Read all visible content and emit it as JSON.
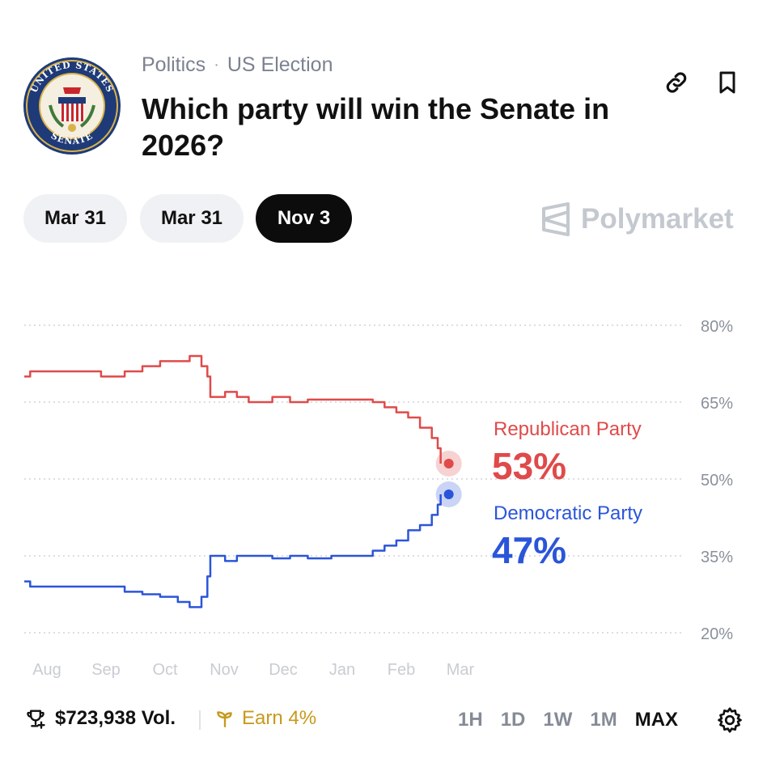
{
  "header": {
    "breadcrumb": {
      "category": "Politics",
      "separator": "·",
      "subcategory": "US Election"
    },
    "title": "Which party will win the Senate in 2026?",
    "icons": {
      "link": "link-icon",
      "bookmark": "bookmark-icon"
    },
    "logo": {
      "name": "us-senate-seal",
      "text": "UNITED STATES SENATE"
    }
  },
  "date_tabs": [
    {
      "label": "Mar 31",
      "active": false
    },
    {
      "label": "Mar 31",
      "active": false
    },
    {
      "label": "Nov 3",
      "active": true
    }
  ],
  "brand": {
    "name": "Polymarket",
    "icon": "polymarket-logo-icon"
  },
  "chart_data": {
    "type": "line",
    "y_ticks": [
      "80%",
      "65%",
      "50%",
      "35%",
      "20%"
    ],
    "y_tick_values": [
      80,
      65,
      50,
      35,
      20
    ],
    "ylim": [
      20,
      80
    ],
    "x_tick_labels": [
      "Aug",
      "Sep",
      "Oct",
      "Nov",
      "Dec",
      "Jan",
      "Feb",
      "Mar"
    ],
    "grid": true,
    "series": [
      {
        "name": "Republican Party",
        "value_label": "53%",
        "color": "#e04a4a",
        "points": [
          [
            0.0,
            70
          ],
          [
            0.1,
            71
          ],
          [
            0.5,
            71
          ],
          [
            0.9,
            71
          ],
          [
            1.3,
            70
          ],
          [
            1.7,
            71
          ],
          [
            2.0,
            72
          ],
          [
            2.3,
            73
          ],
          [
            2.6,
            73
          ],
          [
            2.8,
            74
          ],
          [
            3.0,
            72
          ],
          [
            3.1,
            70
          ],
          [
            3.15,
            66
          ],
          [
            3.4,
            67
          ],
          [
            3.6,
            66
          ],
          [
            3.8,
            65
          ],
          [
            4.0,
            65
          ],
          [
            4.2,
            66
          ],
          [
            4.5,
            65
          ],
          [
            4.8,
            65.5
          ],
          [
            5.2,
            65.5
          ],
          [
            5.6,
            65.5
          ],
          [
            5.9,
            65
          ],
          [
            6.1,
            64
          ],
          [
            6.3,
            63
          ],
          [
            6.5,
            62
          ],
          [
            6.7,
            60
          ],
          [
            6.9,
            58
          ],
          [
            7.0,
            56
          ],
          [
            7.05,
            53
          ]
        ]
      },
      {
        "name": "Democratic Party",
        "value_label": "47%",
        "color": "#2b55d9",
        "points": [
          [
            0.0,
            30
          ],
          [
            0.1,
            29
          ],
          [
            0.5,
            29
          ],
          [
            0.9,
            29
          ],
          [
            1.3,
            29
          ],
          [
            1.7,
            28
          ],
          [
            2.0,
            27.5
          ],
          [
            2.3,
            27
          ],
          [
            2.6,
            26
          ],
          [
            2.8,
            25
          ],
          [
            3.0,
            27
          ],
          [
            3.1,
            31
          ],
          [
            3.15,
            35
          ],
          [
            3.4,
            34
          ],
          [
            3.6,
            35
          ],
          [
            3.8,
            35
          ],
          [
            4.0,
            35
          ],
          [
            4.2,
            34.5
          ],
          [
            4.5,
            35
          ],
          [
            4.8,
            34.5
          ],
          [
            5.2,
            35
          ],
          [
            5.6,
            35
          ],
          [
            5.9,
            36
          ],
          [
            6.1,
            37
          ],
          [
            6.3,
            38
          ],
          [
            6.5,
            40
          ],
          [
            6.7,
            41
          ],
          [
            6.9,
            43
          ],
          [
            7.0,
            45
          ],
          [
            7.05,
            47
          ]
        ]
      }
    ]
  },
  "footer": {
    "volume": "$723,938 Vol.",
    "volume_icon": "trophy-icon",
    "earn": "Earn 4%",
    "earn_icon": "sprout-icon",
    "ranges": [
      "1H",
      "1D",
      "1W",
      "1M",
      "MAX"
    ],
    "active_range": "MAX",
    "settings_icon": "gear-icon"
  }
}
